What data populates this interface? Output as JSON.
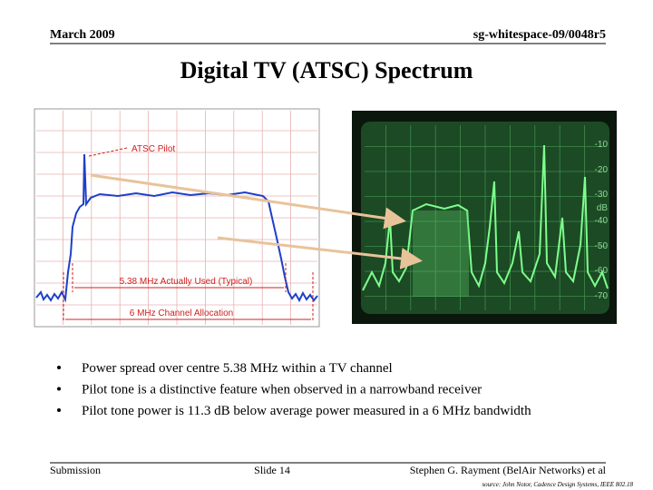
{
  "header": {
    "date": "March 2009",
    "doc_id": "sg-whitespace-09/0048r5"
  },
  "title": "Digital TV (ATSC) Spectrum",
  "figure_left": {
    "pilot_label": "ATSC Pilot",
    "used_label": "5.38 MHz Actually Used (Typical)",
    "allocation_label": "6 MHz Channel Allocation"
  },
  "figure_right": {
    "scale_labels": [
      "-10",
      "-20",
      "-30",
      "dB",
      "-40",
      "-50",
      "-60",
      "-70"
    ]
  },
  "bullets": [
    "Power spread over centre 5.38 MHz within a TV channel",
    "Pilot tone is a distinctive feature when observed in a narrowband receiver",
    "Pilot tone power is 11.3 dB below average power measured in a 6 MHz bandwidth"
  ],
  "footer": {
    "left": "Submission",
    "center": "Slide 14",
    "right": "Stephen G. Rayment (BelAir Networks) et al",
    "source": "source: John Notor, Cadence Design Systems, IEEE 802.18"
  }
}
